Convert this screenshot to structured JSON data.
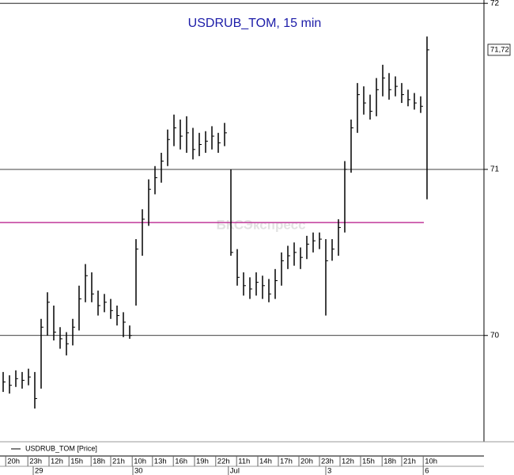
{
  "chart_data": {
    "type": "hlc",
    "title": "USDRUB_TOM, 15 min",
    "watermark": "БКСЭкспресс",
    "series": [
      {
        "name": "USDRUB_TOM [Price]",
        "color": "#000000",
        "high": [
          69.78,
          69.76,
          69.79,
          69.78,
          69.8,
          69.78,
          70.1,
          70.26,
          70.18,
          70.05,
          70.02,
          70.1,
          70.3,
          70.43,
          70.38,
          70.27,
          70.25,
          70.22,
          70.18,
          70.14,
          70.06,
          70.58,
          70.76,
          70.94,
          71.02,
          71.1,
          71.24,
          71.33,
          71.3,
          71.32,
          71.25,
          71.22,
          71.23,
          71.26,
          71.22,
          71.28,
          71.0,
          70.52,
          70.38,
          70.35,
          70.38,
          70.36,
          70.34,
          70.4,
          70.5,
          70.54,
          70.56,
          70.53,
          70.6,
          70.62,
          70.62,
          70.58,
          70.58,
          70.7,
          71.05,
          71.3,
          71.52,
          71.5,
          71.45,
          71.55,
          71.63,
          71.58,
          71.56,
          71.52,
          71.48,
          71.46,
          71.44,
          71.8
        ],
        "low": [
          69.66,
          69.65,
          69.69,
          69.68,
          69.7,
          69.56,
          69.68,
          70.0,
          69.97,
          69.92,
          69.88,
          69.94,
          70.03,
          70.2,
          70.2,
          70.12,
          70.14,
          70.1,
          70.06,
          69.99,
          69.98,
          70.18,
          70.48,
          70.66,
          70.85,
          70.92,
          71.02,
          71.14,
          71.12,
          71.1,
          71.06,
          71.08,
          71.1,
          71.12,
          71.1,
          71.14,
          70.48,
          70.3,
          70.24,
          70.22,
          70.24,
          70.22,
          70.2,
          70.22,
          70.3,
          70.4,
          70.42,
          70.4,
          70.46,
          70.5,
          70.52,
          70.12,
          70.45,
          70.48,
          70.62,
          70.98,
          71.22,
          71.33,
          71.3,
          71.32,
          71.44,
          71.42,
          71.44,
          71.4,
          71.38,
          71.36,
          71.34,
          70.82
        ],
        "close": [
          69.72,
          69.7,
          69.74,
          69.73,
          69.75,
          69.62,
          70.05,
          70.2,
          70.02,
          69.98,
          69.95,
          70.05,
          70.22,
          70.36,
          70.25,
          70.18,
          70.2,
          70.15,
          70.12,
          70.08,
          70.0,
          70.52,
          70.7,
          70.88,
          70.95,
          71.05,
          71.18,
          71.25,
          71.2,
          71.22,
          71.12,
          71.15,
          71.17,
          71.2,
          71.16,
          71.22,
          70.5,
          70.35,
          70.3,
          70.28,
          70.32,
          70.3,
          70.25,
          70.33,
          70.45,
          70.48,
          70.5,
          70.47,
          70.55,
          70.57,
          70.58,
          70.45,
          70.52,
          70.65,
          71.0,
          71.25,
          71.45,
          71.4,
          71.35,
          71.48,
          71.55,
          71.48,
          71.5,
          71.45,
          71.42,
          71.4,
          71.38,
          71.72
        ]
      }
    ],
    "ylim": [
      69.36,
      72.02
    ],
    "yticks": [
      70,
      71,
      72
    ],
    "grid": true,
    "xlim": [
      -0.5,
      76
    ],
    "xticks": [
      {
        "value": 0.4,
        "label": "20h"
      },
      {
        "value": 3.9,
        "label": "23h"
      },
      {
        "value": 7.25,
        "label": "12h"
      },
      {
        "value": 10.4,
        "label": "15h"
      },
      {
        "value": 13.9,
        "label": "18h"
      },
      {
        "value": 17,
        "label": "21h"
      },
      {
        "value": 20.4,
        "label": "10h"
      },
      {
        "value": 23.6,
        "label": "13h"
      },
      {
        "value": 26.9,
        "label": "16h"
      },
      {
        "value": 30.25,
        "label": "19h"
      },
      {
        "value": 33.6,
        "label": "22h"
      },
      {
        "value": 36.9,
        "label": "11h"
      },
      {
        "value": 40.25,
        "label": "14h"
      },
      {
        "value": 43.5,
        "label": "17h"
      },
      {
        "value": 46.75,
        "label": "20h"
      },
      {
        "value": 50,
        "label": "23h"
      },
      {
        "value": 53.25,
        "label": "12h"
      },
      {
        "value": 56.5,
        "label": "15h"
      },
      {
        "value": 59.9,
        "label": "18h"
      },
      {
        "value": 63,
        "label": "21h"
      },
      {
        "value": 66.4,
        "label": "10h"
      }
    ],
    "date_ticks": [
      {
        "value": 4.75,
        "label": "29"
      },
      {
        "value": 20.5,
        "label": "30"
      },
      {
        "value": 35.6,
        "label": "Jul"
      },
      {
        "value": 51,
        "label": "3"
      },
      {
        "value": 66.4,
        "label": "6"
      }
    ],
    "last_price": {
      "value": 71.72,
      "label": "71,72"
    },
    "level_line": {
      "value": 70.68,
      "color": "#c0399a"
    }
  }
}
